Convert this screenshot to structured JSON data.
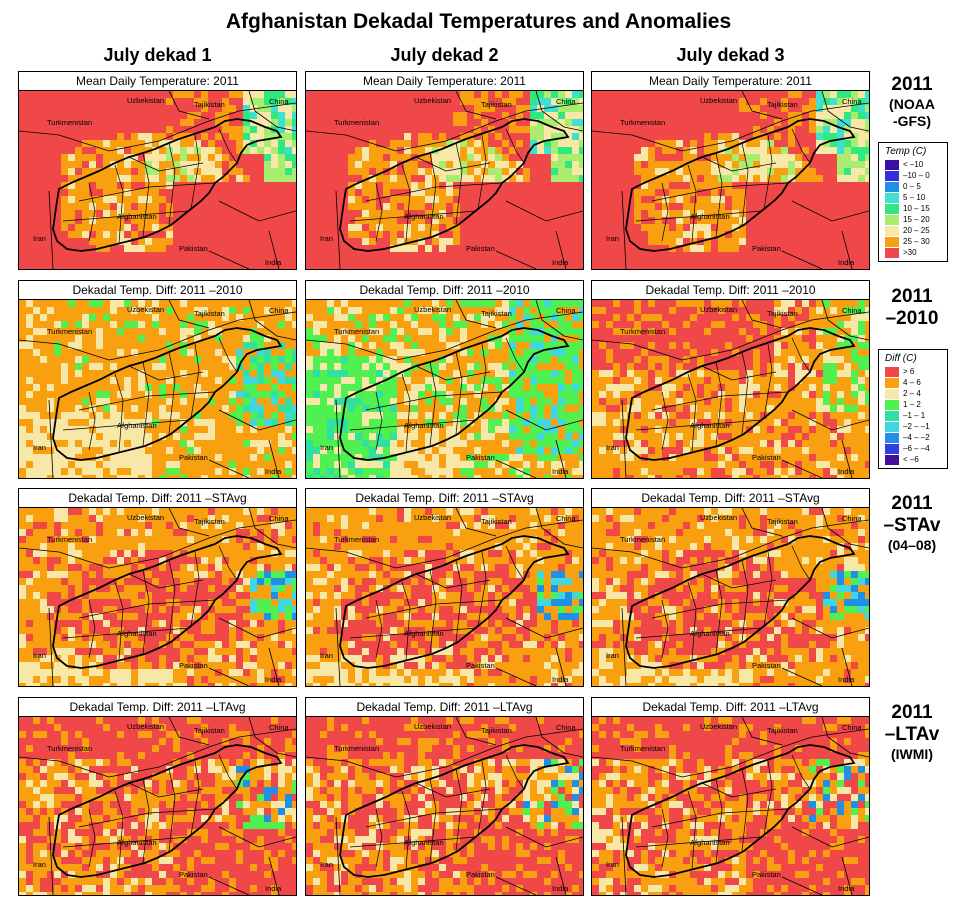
{
  "title": "Afghanistan Dekadal Temperatures and Anomalies",
  "columns": [
    "July dekad 1",
    "July dekad 2",
    "July dekad 3"
  ],
  "rows": [
    {
      "panel_title": "Mean Daily Temperature: 2011",
      "label_lines": [
        "2011"
      ],
      "sub_lines": [
        "(NOAA",
        "-GFS)"
      ],
      "scheme": "temp"
    },
    {
      "panel_title": "Dekadal Temp. Diff:  2011 –2010",
      "label_lines": [
        "2011",
        "–2010"
      ],
      "sub_lines": [],
      "scheme": "diff"
    },
    {
      "panel_title": "Dekadal Temp. Diff:  2011 –STAvg",
      "label_lines": [
        "2011",
        "–STAv"
      ],
      "sub_lines": [
        "(04–08)"
      ],
      "scheme": "diff"
    },
    {
      "panel_title": "Dekadal Temp. Diff:  2011 –LTAvg",
      "label_lines": [
        "2011",
        "–LTAv"
      ],
      "sub_lines": [
        "(IWMI)"
      ],
      "scheme": "diff"
    }
  ],
  "panel_titles_override": {
    "1-0": "Dekadal Temp. Diff:  2011 –2010",
    "1-1": "Dekadal Temp. Diff:  2011 –2010",
    "1-2": "Dekadal Temp. Diff:  2011 –2010"
  },
  "map_labels": {
    "uzbekistan": "Uzbekistan",
    "tajikistan": "Tajikistan",
    "china": "China",
    "turkmenistan": "Turkmenistan",
    "afghanistan": "Afghanistan",
    "iran": "Iran",
    "pakistan": "Pakistan",
    "india": "India"
  },
  "legend_temp": {
    "title": "Temp (C)",
    "items": [
      {
        "label": "< –10",
        "color": "#3a0fa0"
      },
      {
        "label": "–10 –  0",
        "color": "#3030e0"
      },
      {
        "label": "0 –  5",
        "color": "#1e90e8"
      },
      {
        "label": "5 – 10",
        "color": "#40e0d0"
      },
      {
        "label": "10 – 15",
        "color": "#30e880"
      },
      {
        "label": "15 – 20",
        "color": "#a8ec70"
      },
      {
        "label": "20 – 25",
        "color": "#f8e8a8"
      },
      {
        "label": "25 – 30",
        "color": "#f8a010"
      },
      {
        "label": ">30",
        "color": "#f04848"
      }
    ]
  },
  "legend_diff": {
    "title": "Diff (C)",
    "items": [
      {
        "label": "> 6",
        "color": "#f04848"
      },
      {
        "label": "4 – 6",
        "color": "#f8a010"
      },
      {
        "label": "2 –  4",
        "color": "#f8e8a8"
      },
      {
        "label": "1 –  2",
        "color": "#50f050"
      },
      {
        "label": "–1 –  1",
        "color": "#30e0a0"
      },
      {
        "label": "–2 – –1",
        "color": "#40d8e0"
      },
      {
        "label": "–4 – –2",
        "color": "#1e90e8"
      },
      {
        "label": "–6 – –4",
        "color": "#3040e0"
      },
      {
        "label": "< –6",
        "color": "#4010a0"
      }
    ]
  }
}
